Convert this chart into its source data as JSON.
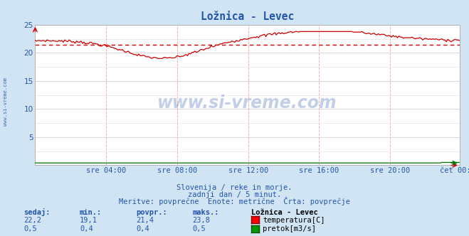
{
  "title": "Ložnica - Levec",
  "bg_color": "#d0e4f4",
  "plot_bg_color": "#ffffff",
  "grid_color": "#c8c8c8",
  "grid_color_minor": "#e0dede",
  "temp_color": "#cc0000",
  "flow_color": "#007700",
  "avg_line_color": "#cc0000",
  "x_tick_labels": [
    "sre 04:00",
    "sre 08:00",
    "sre 12:00",
    "sre 16:00",
    "sre 20:00",
    "čet 00:00"
  ],
  "x_tick_positions": [
    48,
    96,
    144,
    192,
    240,
    287
  ],
  "n_points": 288,
  "temp_min": 19.1,
  "temp_max": 23.8,
  "temp_avg": 21.4,
  "temp_current": 22.2,
  "flow_min": 0.4,
  "flow_max": 0.5,
  "flow_avg": 0.4,
  "flow_current": 0.5,
  "y_min": 0,
  "y_max": 25,
  "y_ticks": [
    5,
    10,
    15,
    20,
    25
  ],
  "subtitle1": "Slovenija / reke in morje.",
  "subtitle2": "zadnji dan / 5 minut.",
  "subtitle3": "Meritve: povprečne  Enote: metrične  Črta: povprečje",
  "label_sedaj": "sedaj:",
  "label_min": "min.:",
  "label_povpr": "povpr.:",
  "label_maks": "maks.:",
  "legend_title": "Ložnica - Levec",
  "legend_temp": "temperatura[C]",
  "legend_flow": "pretok[m3/s]",
  "watermark": "www.si-vreme.com",
  "text_color": "#2255aa"
}
